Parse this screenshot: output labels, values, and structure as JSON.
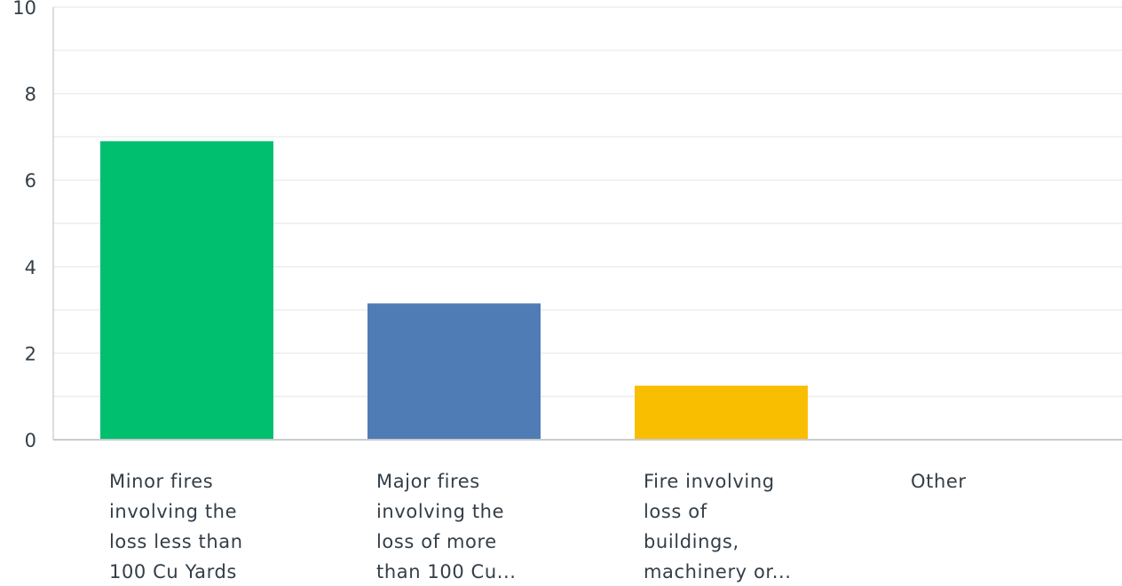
{
  "chart_data": {
    "type": "bar",
    "categories": [
      [
        "Minor fires",
        "involving the",
        "loss less than",
        "100 Cu Yards"
      ],
      [
        "Major fires",
        "involving the",
        "loss of more",
        "than 100 Cu..."
      ],
      [
        "Fire involving",
        "loss of",
        "buildings,",
        "machinery or..."
      ],
      [
        "Other"
      ]
    ],
    "values": [
      6.9,
      3.15,
      1.25,
      0
    ],
    "colors": [
      "#00bf6f",
      "#507cb6",
      "#f9be00",
      "#6bc8cd"
    ],
    "ylim": [
      0,
      10
    ],
    "yticks": [
      "0",
      "2",
      "4",
      "6",
      "8",
      "10"
    ],
    "grid": true,
    "title": "",
    "xlabel": "",
    "ylabel": ""
  }
}
